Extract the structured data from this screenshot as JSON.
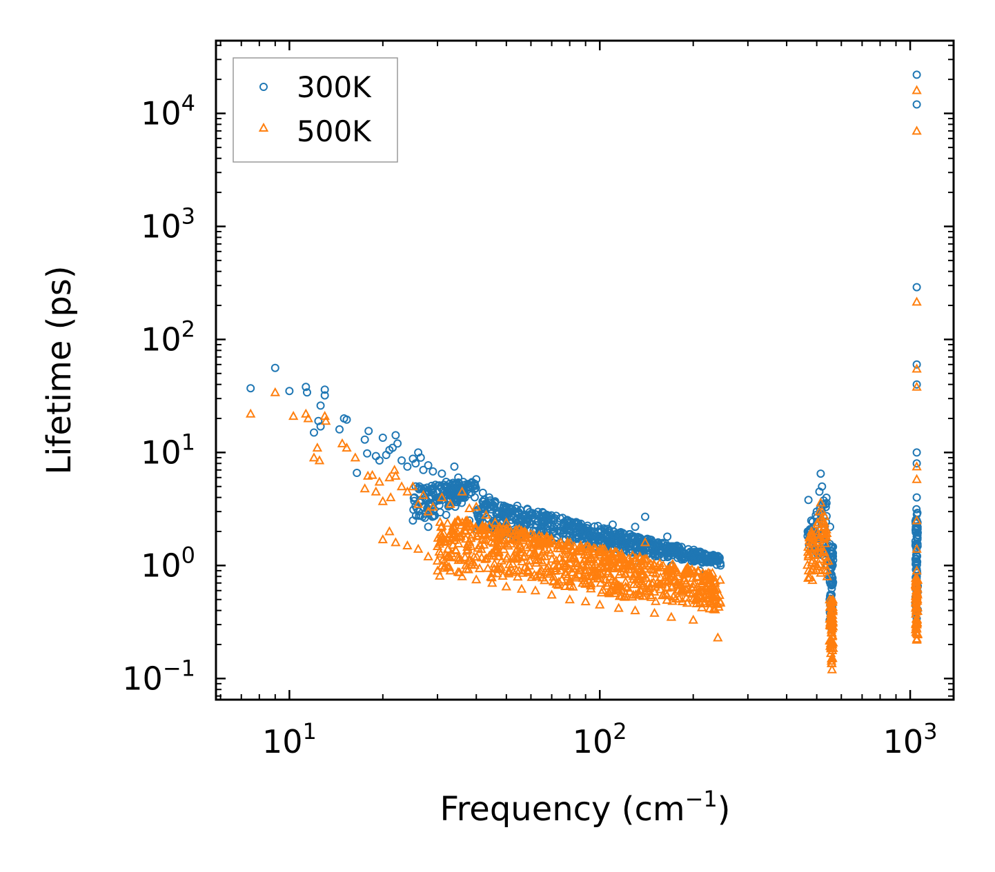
{
  "chart_data": {
    "type": "scatter",
    "xscale": "log",
    "yscale": "log",
    "xlim": [
      5.8,
      1380
    ],
    "ylim": [
      0.065,
      44000
    ],
    "xlabel": {
      "text": "Frequency (cm",
      "sup": "−1",
      "suffix": ")"
    },
    "ylabel": "Lifetime (ps)",
    "xticks": [
      {
        "value": 10,
        "base": "10",
        "exp": "1"
      },
      {
        "value": 100,
        "base": "10",
        "exp": "2"
      },
      {
        "value": 1000,
        "base": "10",
        "exp": "3"
      }
    ],
    "yticks": [
      {
        "value": 0.1,
        "base": "10",
        "exp": "−1"
      },
      {
        "value": 1,
        "base": "10",
        "exp": "0"
      },
      {
        "value": 10,
        "base": "10",
        "exp": "1"
      },
      {
        "value": 100,
        "base": "10",
        "exp": "2"
      },
      {
        "value": 1000,
        "base": "10",
        "exp": "3"
      },
      {
        "value": 10000,
        "base": "10",
        "exp": "4"
      }
    ],
    "legend": {
      "location": "top-left"
    },
    "series": [
      {
        "name": "300K",
        "marker": "circle",
        "color": "#1f77b4",
        "points": [
          [
            7.5,
            37
          ],
          [
            9,
            56
          ],
          [
            10,
            35
          ],
          [
            11.3,
            38
          ],
          [
            11.4,
            34
          ],
          [
            12,
            15
          ],
          [
            12.4,
            19
          ],
          [
            12.6,
            17
          ],
          [
            12.6,
            26
          ],
          [
            13,
            36
          ],
          [
            13,
            32
          ],
          [
            14.5,
            16
          ],
          [
            15,
            20
          ],
          [
            15.3,
            19.5
          ],
          [
            16.5,
            6.6
          ],
          [
            17.5,
            13
          ],
          [
            17.8,
            9.8
          ],
          [
            18,
            15.5
          ],
          [
            19,
            9.3
          ],
          [
            19.5,
            8.5
          ],
          [
            20,
            13.5
          ],
          [
            20.5,
            9.5
          ],
          [
            21,
            10.5
          ],
          [
            21.5,
            11
          ],
          [
            22,
            14.2
          ],
          [
            22.3,
            12
          ],
          [
            23,
            8.5
          ],
          [
            24,
            7.5
          ],
          [
            25,
            8.8
          ],
          [
            25.5,
            8
          ],
          [
            26,
            10
          ],
          [
            26.5,
            9
          ],
          [
            27,
            7
          ],
          [
            28,
            7.7
          ],
          [
            29,
            6.8
          ],
          [
            31,
            6.5
          ],
          [
            32,
            5.5
          ],
          [
            33,
            4.8
          ],
          [
            34,
            7.5
          ],
          [
            35,
            6
          ],
          [
            36,
            4.7
          ],
          [
            38,
            5
          ],
          [
            40,
            5.8
          ],
          [
            42,
            4.4
          ],
          [
            44,
            4
          ],
          [
            46,
            3.7
          ],
          [
            48,
            3.4
          ],
          [
            50,
            3.3
          ],
          [
            52,
            3
          ],
          [
            55,
            2.9
          ],
          [
            58,
            2.8
          ],
          [
            62,
            2.6
          ],
          [
            66,
            2.4
          ],
          [
            70,
            2.3
          ],
          [
            75,
            2.2
          ],
          [
            80,
            2.1
          ],
          [
            86,
            2
          ],
          [
            92,
            1.9
          ],
          [
            100,
            1.7
          ],
          [
            106,
            1.6
          ],
          [
            110,
            2.3
          ],
          [
            115,
            1.8
          ],
          [
            122,
            1.6
          ],
          [
            130,
            2.2
          ],
          [
            135,
            1.7
          ],
          [
            140,
            2.7
          ],
          [
            145,
            1.6
          ],
          [
            155,
            1.5
          ],
          [
            165,
            1.8
          ],
          [
            175,
            1.4
          ],
          [
            185,
            1.3
          ],
          [
            195,
            1.3
          ],
          [
            205,
            1.2
          ],
          [
            215,
            1.2
          ],
          [
            225,
            1.1
          ],
          [
            235,
            1.1
          ],
          [
            245,
            1.0
          ],
          [
            25,
            2.5
          ],
          [
            28,
            2.2
          ],
          [
            32,
            2.8
          ],
          [
            38,
            2.5
          ],
          [
            45,
            2.3
          ],
          [
            55,
            1.8
          ],
          [
            65,
            1.6
          ],
          [
            80,
            1.5
          ],
          [
            100,
            1.25
          ],
          [
            130,
            1.1
          ],
          [
            170,
            1.0
          ],
          [
            210,
            0.9
          ],
          [
            470,
            3.8
          ],
          [
            480,
            2.5
          ],
          [
            485,
            1.5
          ],
          [
            490,
            2
          ],
          [
            500,
            3
          ],
          [
            510,
            4.5
          ],
          [
            515,
            6.5
          ],
          [
            520,
            5
          ],
          [
            525,
            3.5
          ],
          [
            530,
            2.2
          ],
          [
            535,
            1.5
          ],
          [
            540,
            1.0
          ],
          [
            545,
            1.5
          ],
          [
            548,
            0.8
          ],
          [
            552,
            2.2
          ],
          [
            555,
            1.2
          ],
          [
            558,
            0.7
          ],
          [
            560,
            0.45
          ],
          [
            562,
            0.3
          ],
          [
            1050,
            22000
          ],
          [
            1050,
            12000
          ],
          [
            1050,
            290
          ],
          [
            1050,
            60
          ],
          [
            1050,
            40
          ],
          [
            1050,
            10
          ],
          [
            1050,
            8
          ],
          [
            1050,
            4
          ],
          [
            1050,
            2.5
          ],
          [
            1050,
            1.8
          ],
          [
            1050,
            1.2
          ],
          [
            1050,
            0.8
          ],
          [
            1050,
            0.6
          ],
          [
            1050,
            0.4
          ],
          [
            1050,
            0.3
          ]
        ],
        "bands": [
          {
            "x": [
              25,
              40
            ],
            "ylog": [
              [
                0.7,
                0.35
              ],
              [
                0.75,
                0.6
              ]
            ]
          },
          {
            "x": [
              40,
              245
            ],
            "ylog": [
              [
                0.62,
                0.3
              ],
              [
                0.08,
                0.0
              ]
            ]
          },
          {
            "x": [
              465,
              540
            ],
            "ylog": [
              [
                0.3,
                0.2
              ],
              [
                0.65,
                0.0
              ]
            ]
          },
          {
            "x": [
              550,
              565
            ],
            "ylog": [
              [
                0.2,
                -0.6
              ],
              [
                0.2,
                -0.6
              ]
            ]
          },
          {
            "x": [
              1040,
              1058
            ],
            "ylog": [
              [
                0.5,
                -0.55
              ],
              [
                0.5,
                -0.55
              ]
            ]
          }
        ]
      },
      {
        "name": "500K",
        "marker": "triangle",
        "color": "#ff7f0e",
        "points": [
          [
            7.5,
            22
          ],
          [
            9,
            34
          ],
          [
            10.3,
            21
          ],
          [
            11.3,
            22
          ],
          [
            11.5,
            20
          ],
          [
            12,
            9
          ],
          [
            12.3,
            11
          ],
          [
            12.5,
            8.5
          ],
          [
            13,
            21
          ],
          [
            13.1,
            19
          ],
          [
            14.8,
            12
          ],
          [
            15.3,
            11
          ],
          [
            16.3,
            9
          ],
          [
            17.5,
            4.8
          ],
          [
            17.9,
            6.2
          ],
          [
            18.5,
            6.3
          ],
          [
            19,
            4.5
          ],
          [
            19.5,
            5.5
          ],
          [
            20,
            3.7
          ],
          [
            21,
            6
          ],
          [
            21.2,
            4
          ],
          [
            21.8,
            7
          ],
          [
            22,
            6.2
          ],
          [
            23,
            5
          ],
          [
            24,
            4.5
          ],
          [
            25,
            5
          ],
          [
            26,
            3.5
          ],
          [
            27,
            4.2
          ],
          [
            28,
            3
          ],
          [
            29,
            3.3
          ],
          [
            31,
            4
          ],
          [
            33,
            3.5
          ],
          [
            36,
            4.5
          ],
          [
            38,
            3.2
          ],
          [
            40,
            3.3
          ],
          [
            43,
            2.8
          ],
          [
            46,
            2.4
          ],
          [
            50,
            2.4
          ],
          [
            55,
            2.1
          ],
          [
            60,
            1.9
          ],
          [
            65,
            1.8
          ],
          [
            70,
            1.7
          ],
          [
            75,
            1.6
          ],
          [
            80,
            1.5
          ],
          [
            86,
            1.45
          ],
          [
            92,
            1.4
          ],
          [
            100,
            1.3
          ],
          [
            110,
            1.2
          ],
          [
            120,
            1.15
          ],
          [
            130,
            1.1
          ],
          [
            140,
            1.6
          ],
          [
            150,
            1.0
          ],
          [
            160,
            1.0
          ],
          [
            175,
            0.9
          ],
          [
            190,
            0.85
          ],
          [
            205,
            0.8
          ],
          [
            220,
            0.75
          ],
          [
            235,
            0.7
          ],
          [
            20,
            1.7
          ],
          [
            21,
            2
          ],
          [
            22,
            1.6
          ],
          [
            24,
            1.5
          ],
          [
            26,
            1.4
          ],
          [
            28,
            1.2
          ],
          [
            30,
            1.1
          ],
          [
            33,
            0.9
          ],
          [
            36,
            0.8
          ],
          [
            40,
            0.75
          ],
          [
            45,
            0.7
          ],
          [
            50,
            0.65
          ],
          [
            56,
            0.62
          ],
          [
            62,
            0.6
          ],
          [
            70,
            0.55
          ],
          [
            80,
            0.5
          ],
          [
            90,
            0.48
          ],
          [
            100,
            0.45
          ],
          [
            115,
            0.42
          ],
          [
            130,
            0.4
          ],
          [
            150,
            0.38
          ],
          [
            170,
            0.35
          ],
          [
            200,
            0.33
          ],
          [
            240,
            0.23
          ],
          [
            470,
            1.2
          ],
          [
            480,
            0.9
          ],
          [
            490,
            1.4
          ],
          [
            500,
            2
          ],
          [
            510,
            3
          ],
          [
            515,
            3.6
          ],
          [
            520,
            3
          ],
          [
            525,
            2.5
          ],
          [
            530,
            1.8
          ],
          [
            535,
            1.2
          ],
          [
            540,
            0.8
          ],
          [
            545,
            1.1
          ],
          [
            550,
            0.5
          ],
          [
            555,
            0.3
          ],
          [
            558,
            0.15
          ],
          [
            560,
            0.12
          ],
          [
            562,
            0.2
          ],
          [
            1050,
            16000
          ],
          [
            1050,
            7000
          ],
          [
            1050,
            215
          ],
          [
            1050,
            55
          ],
          [
            1050,
            38
          ],
          [
            1050,
            7.5
          ],
          [
            1050,
            5.8
          ],
          [
            1050,
            2.5
          ],
          [
            1050,
            1.4
          ],
          [
            1050,
            0.9
          ],
          [
            1050,
            0.6
          ],
          [
            1050,
            0.4
          ],
          [
            1050,
            0.3
          ],
          [
            1050,
            0.22
          ]
        ],
        "bands": [
          {
            "x": [
              30,
              40
            ],
            "ylog": [
              [
                0.4,
                -0.1
              ],
              [
                0.4,
                -0.05
              ]
            ]
          },
          {
            "x": [
              40,
              245
            ],
            "ylog": [
              [
                0.4,
                -0.1
              ],
              [
                -0.08,
                -0.4
              ]
            ]
          },
          {
            "x": [
              465,
              540
            ],
            "ylog": [
              [
                0.25,
                -0.15
              ],
              [
                0.5,
                -0.1
              ]
            ]
          },
          {
            "x": [
              550,
              565
            ],
            "ylog": [
              [
                -0.3,
                -0.9
              ],
              [
                -0.3,
                -0.9
              ]
            ]
          },
          {
            "x": [
              1040,
              1058
            ],
            "ylog": [
              [
                -0.1,
                -0.65
              ],
              [
                -0.1,
                -0.65
              ]
            ]
          }
        ]
      }
    ]
  }
}
